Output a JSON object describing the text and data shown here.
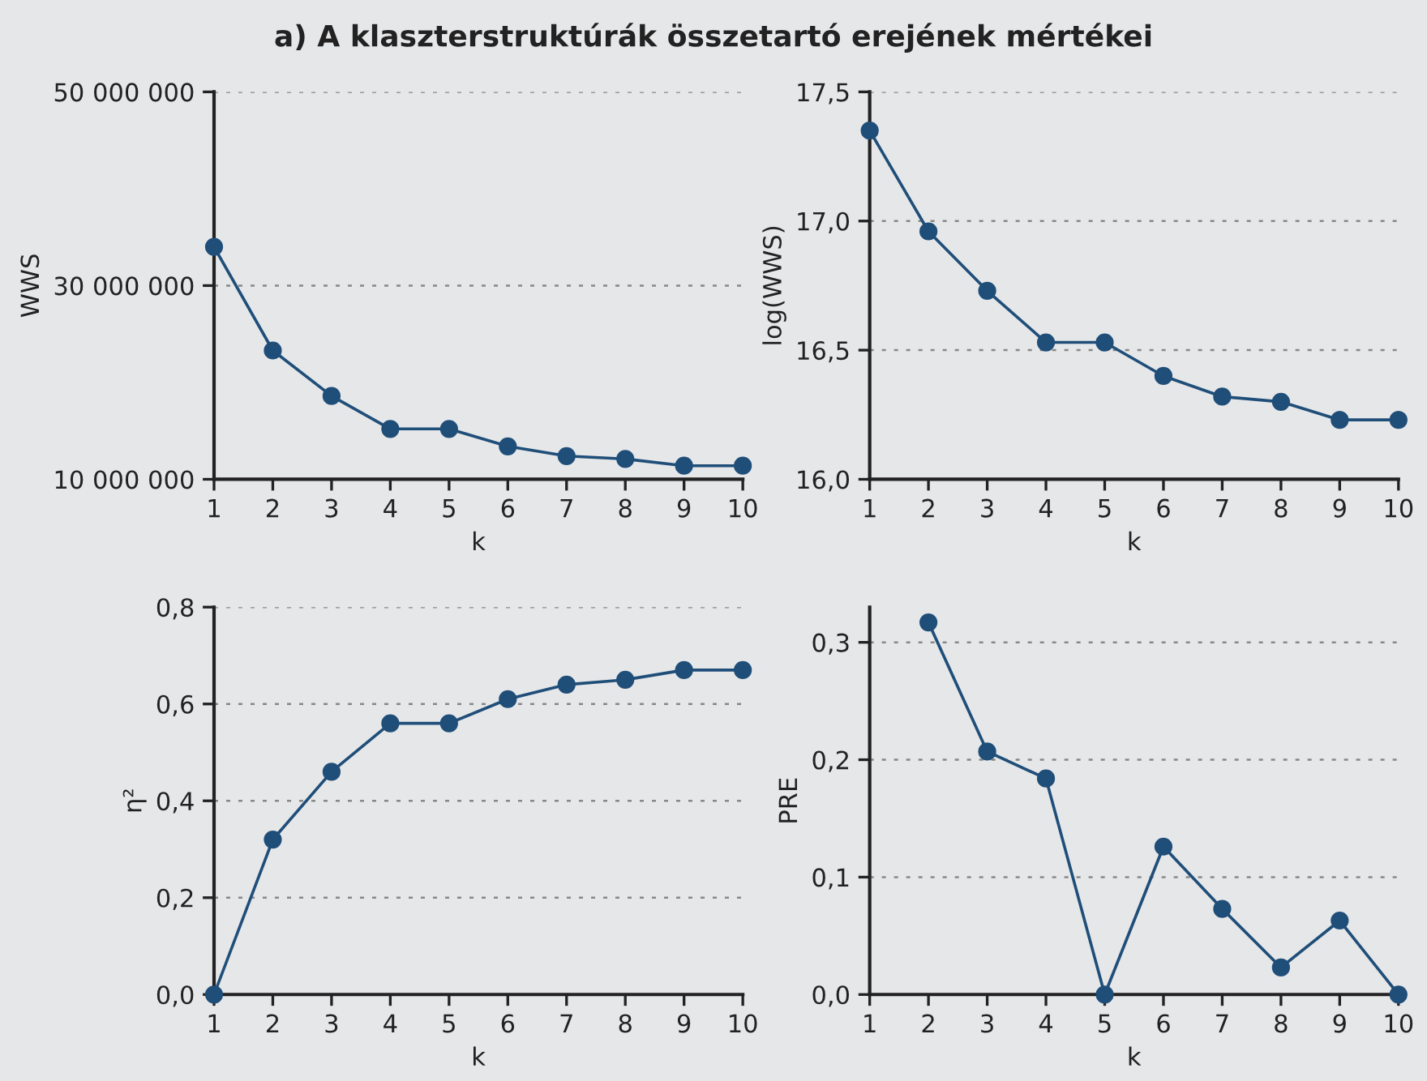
{
  "chart_data": [
    {
      "type": "line",
      "title": "a) A klaszterstruktúrák összetartó erejének mértékei",
      "xlabel": "k",
      "ylabel": "WWS",
      "x": [
        1,
        2,
        3,
        4,
        5,
        6,
        7,
        8,
        9,
        10
      ],
      "series": [
        {
          "color": "#1f4e79",
          "values": [
            34000000,
            23300000,
            18600000,
            15200000,
            15200000,
            13400000,
            12400000,
            12100000,
            11400000,
            11400000
          ]
        }
      ],
      "xlim": [
        1,
        10
      ],
      "xticks": [
        1,
        2,
        3,
        4,
        5,
        6,
        7,
        8,
        9,
        10
      ],
      "ylim": [
        10000000,
        50000000
      ],
      "yticks": [
        {
          "value": 10000000,
          "label": "10 000 000"
        },
        {
          "value": 30000000,
          "label": "30 000 000"
        },
        {
          "value": 50000000,
          "label": "50 000 000"
        }
      ],
      "grid": "y",
      "marker": "circle",
      "line_style": "solid"
    },
    {
      "type": "line",
      "xlabel": "k",
      "ylabel": "log(WWS)",
      "x": [
        1,
        2,
        3,
        4,
        5,
        6,
        7,
        8,
        9,
        10
      ],
      "series": [
        {
          "color": "#1f4e79",
          "values": [
            17.35,
            16.96,
            16.73,
            16.53,
            16.53,
            16.4,
            16.32,
            16.3,
            16.23,
            16.23
          ]
        }
      ],
      "xlim": [
        1,
        10
      ],
      "xticks": [
        1,
        2,
        3,
        4,
        5,
        6,
        7,
        8,
        9,
        10
      ],
      "ylim": [
        16.0,
        17.5
      ],
      "yticks": [
        {
          "value": 16.0,
          "label": "16,0"
        },
        {
          "value": 16.5,
          "label": "16,5"
        },
        {
          "value": 17.0,
          "label": "17,0"
        },
        {
          "value": 17.5,
          "label": "17,5"
        }
      ],
      "grid": "y",
      "marker": "circle",
      "line_style": "solid"
    },
    {
      "type": "line",
      "xlabel": "k",
      "ylabel": "η²",
      "x": [
        1,
        2,
        3,
        4,
        5,
        6,
        7,
        8,
        9,
        10
      ],
      "series": [
        {
          "color": "#1f4e79",
          "values": [
            0.0,
            0.32,
            0.46,
            0.56,
            0.56,
            0.61,
            0.64,
            0.65,
            0.67,
            0.67
          ]
        }
      ],
      "xlim": [
        1,
        10
      ],
      "xticks": [
        1,
        2,
        3,
        4,
        5,
        6,
        7,
        8,
        9,
        10
      ],
      "ylim": [
        0.0,
        0.8
      ],
      "yticks": [
        {
          "value": 0.0,
          "label": "0,0"
        },
        {
          "value": 0.2,
          "label": "0,2"
        },
        {
          "value": 0.4,
          "label": "0,4"
        },
        {
          "value": 0.6,
          "label": "0,6"
        },
        {
          "value": 0.8,
          "label": "0,8"
        }
      ],
      "grid": "y",
      "marker": "circle",
      "line_style": "solid"
    },
    {
      "type": "line",
      "xlabel": "k",
      "ylabel": "PRE",
      "series": [
        {
          "color": "#1f4e79",
          "x": [
            2,
            3,
            4,
            5,
            6,
            7,
            8,
            9,
            10
          ],
          "values": [
            0.317,
            0.207,
            0.184,
            0.0,
            0.126,
            0.073,
            0.023,
            0.063,
            0.0
          ]
        }
      ],
      "xlim": [
        1,
        10
      ],
      "xticks": [
        1,
        2,
        3,
        4,
        5,
        6,
        7,
        8,
        9,
        10
      ],
      "ylim": [
        0.0,
        0.33
      ],
      "yticks": [
        {
          "value": 0.0,
          "label": "0,0"
        },
        {
          "value": 0.1,
          "label": "0,1"
        },
        {
          "value": 0.2,
          "label": "0,2"
        },
        {
          "value": 0.3,
          "label": "0,3"
        }
      ],
      "grid": "y",
      "marker": "circle",
      "line_style": "solid"
    }
  ]
}
